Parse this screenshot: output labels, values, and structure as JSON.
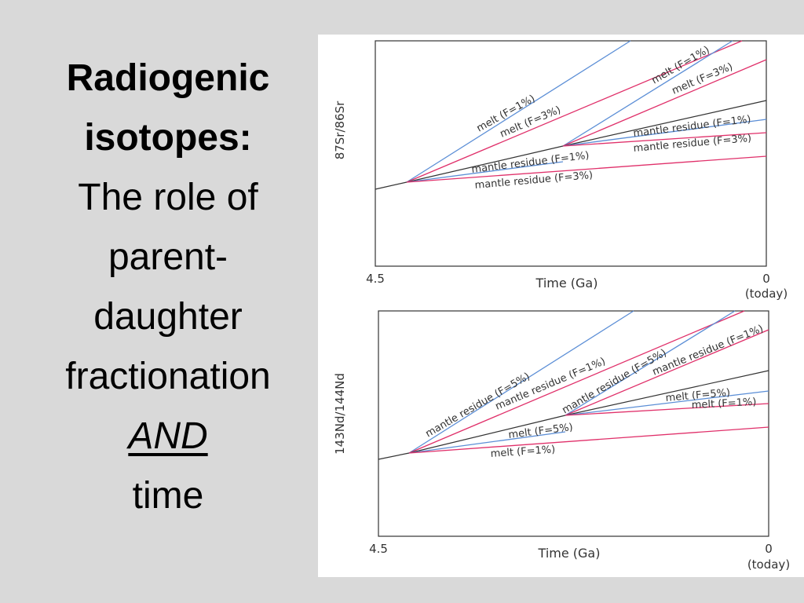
{
  "slide": {
    "lines": [
      {
        "text": "Radiogenic",
        "style": "bold"
      },
      {
        "text": "isotopes:",
        "style": "bold"
      },
      {
        "text": "The role of",
        "style": "normal"
      },
      {
        "text": "parent-",
        "style": "normal"
      },
      {
        "text": "daughter",
        "style": "normal"
      },
      {
        "text": "fractionation",
        "style": "normal"
      },
      {
        "text": "AND",
        "style": "and"
      },
      {
        "text": "time",
        "style": "normal"
      }
    ]
  },
  "colors": {
    "blue": "#5b8ed6",
    "red": "#e0306a",
    "black": "#333333"
  },
  "top_plot": {
    "ylabel": "87Sr/86Sr",
    "xlabel": "Time (Ga)",
    "x_start": "4.5",
    "x_end": "0",
    "x_end_sub": "(today)",
    "labels": {
      "melt_f1": "melt (F=1%)",
      "melt_f3": "melt (F=3%)",
      "res_f1": "mantle residue (F=1%)",
      "res_f3": "mantle residue (F=3%)",
      "melt2_f1": "melt (F=1%)",
      "melt2_f3": "melt (F=3%)",
      "res2_f1": "mantle residue (F=1%)",
      "res2_f3": "mantle residue (F=3%)"
    }
  },
  "bottom_plot": {
    "ylabel": "143Nd/144Nd",
    "xlabel": "Time (Ga)",
    "x_start": "4.5",
    "x_end": "0",
    "x_end_sub": "(today)",
    "labels": {
      "res_f5": "mantle residue (F=5%)",
      "res_f1": "mantle residue (F=1%)",
      "melt_f5": "melt (F=5%)",
      "melt_f1": "melt (F=1%)",
      "res2_f5": "mantle residue (F=5%)",
      "res2_f1": "mantle residue (F=1%)",
      "melt2_f5": "melt (F=5%)",
      "melt2_f1": "melt (F=1%)"
    }
  }
}
